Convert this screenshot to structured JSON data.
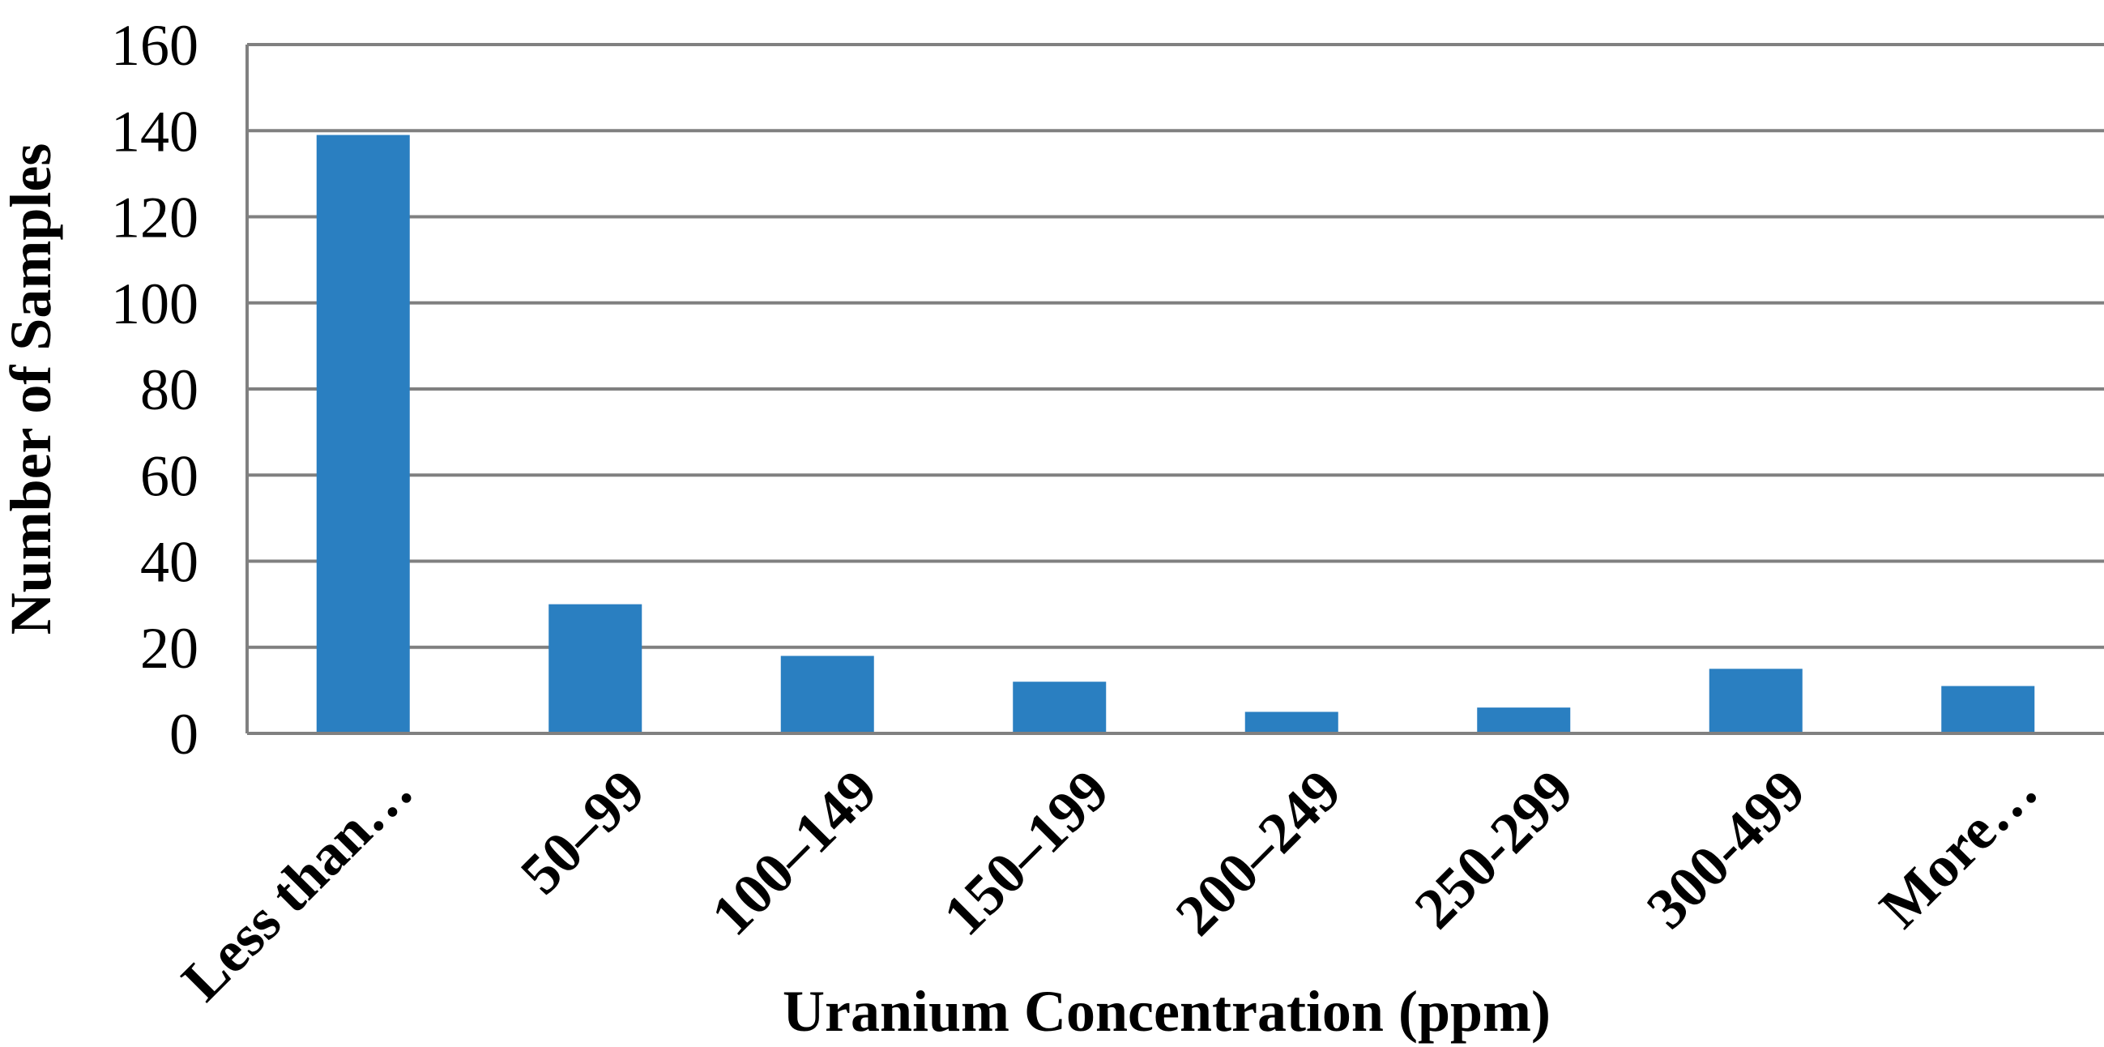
{
  "chart_data": {
    "type": "bar",
    "categories": [
      "Less than…",
      "50–99",
      "100–149",
      "150–199",
      "200–249",
      "250-299",
      "300-499",
      "More…"
    ],
    "series": [
      {
        "values": [
          139,
          30,
          18,
          12,
          5,
          6,
          15,
          11
        ],
        "color": "#2A7FC1"
      }
    ],
    "title": "",
    "xlabel": "Uranium Concentration (ppm)",
    "ylabel": "Number of Samples",
    "ylim": [
      0,
      160
    ],
    "yticks": [
      "0",
      "20",
      "40",
      "60",
      "80",
      "100",
      "120",
      "140",
      "160"
    ],
    "grid": true,
    "legend": "none"
  }
}
